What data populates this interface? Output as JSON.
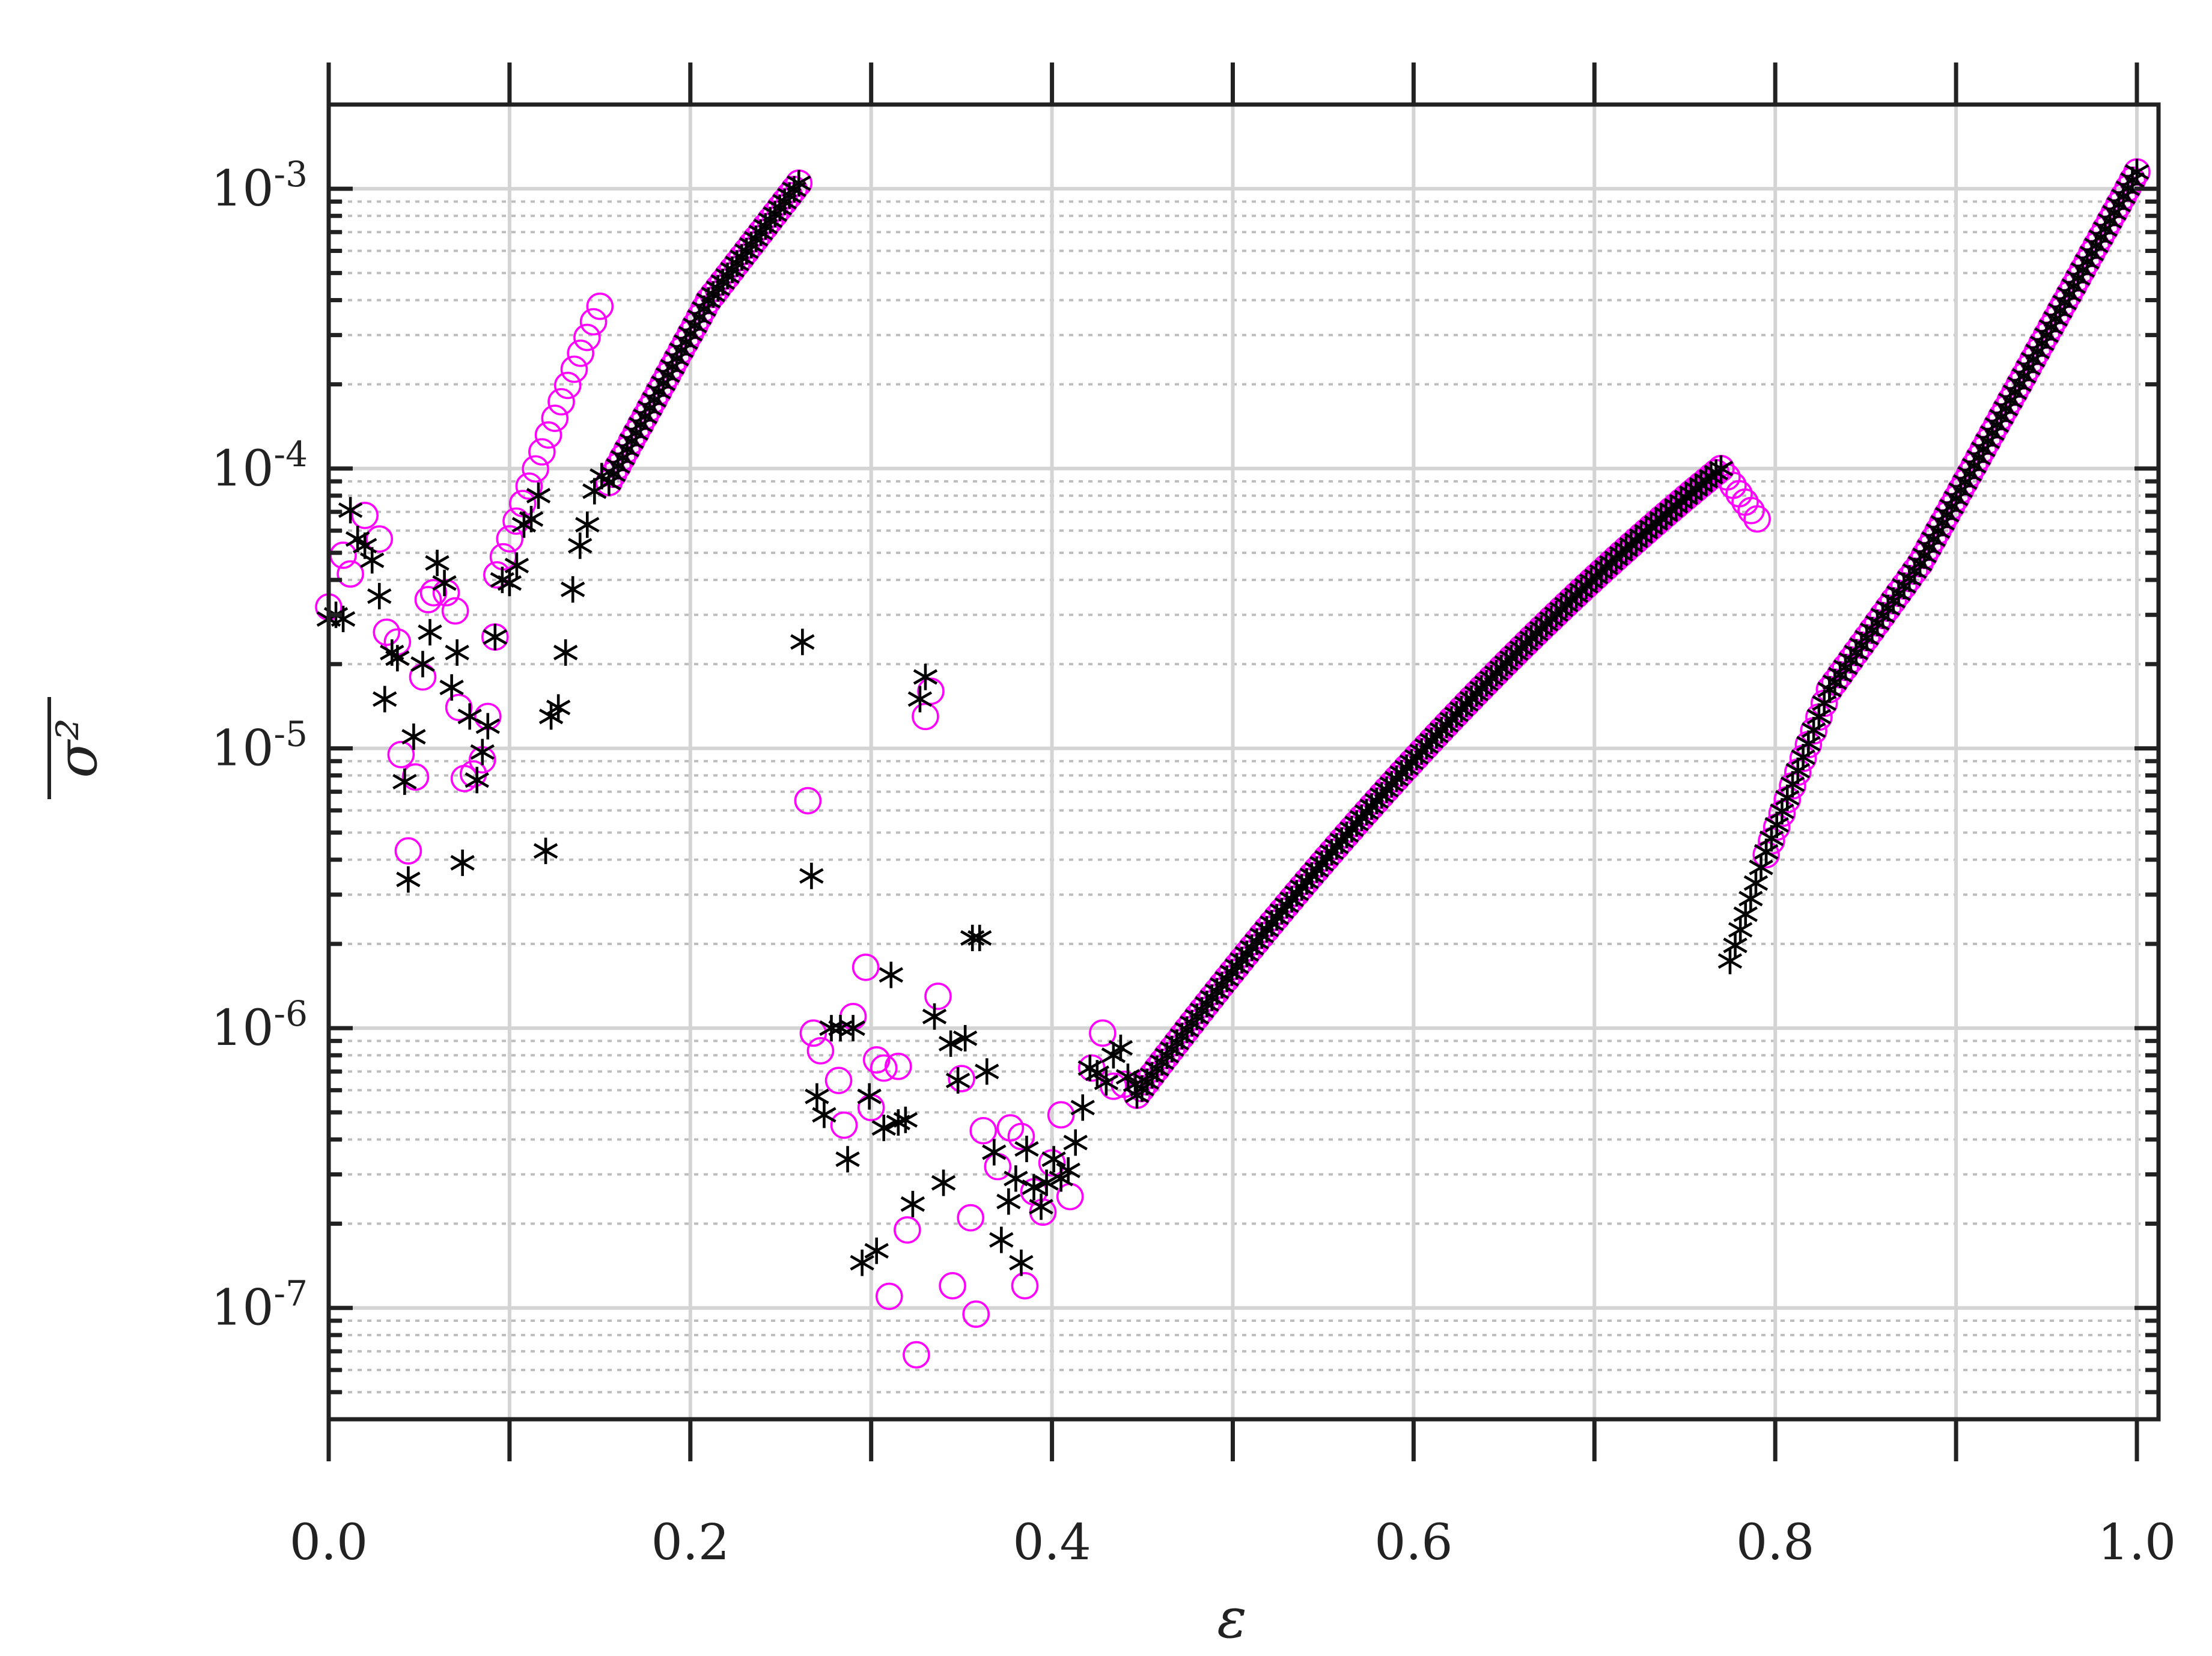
{
  "chart_data": {
    "type": "scatter",
    "title": "",
    "xlabel": "ε",
    "ylabel": "σ²",
    "xlim": [
      0,
      1
    ],
    "ylim": [
      4e-08,
      0.002
    ],
    "yscale": "log",
    "grid": true,
    "legend": "none",
    "x_ticks": [
      "0.0",
      "0.2",
      "0.4",
      "0.6",
      "0.8",
      "1.0"
    ],
    "y_ticks": [
      {
        "base": "10",
        "exp": "-7"
      },
      {
        "base": "10",
        "exp": "-6"
      },
      {
        "base": "10",
        "exp": "-5"
      },
      {
        "base": "10",
        "exp": "-4"
      },
      {
        "base": "10",
        "exp": "-3"
      }
    ],
    "series": [
      {
        "marker": "circle",
        "color": "#ff00ff",
        "segments": [
          {
            "x": [
              0.21,
              0.26
            ],
            "log10y": [
              -3.4,
              -2.98
            ],
            "n": 20
          },
          {
            "x": [
              0.093,
              0.15
            ],
            "log10y": [
              -4.38,
              -3.42
            ],
            "n": 17,
            "convex": 0.08
          },
          {
            "x": [
              0.155,
              0.21
            ],
            "log10y": [
              -4.05,
              -3.4
            ],
            "n": 23
          },
          {
            "x": [
              0.447,
              0.77
            ],
            "log10y": [
              -6.24,
              -4.0
            ],
            "n": 118,
            "convex": 0.55
          },
          {
            "x": [
              0.77,
              0.79
            ],
            "log10y": [
              -4.0,
              -4.18
            ],
            "n": 7
          },
          {
            "x": [
              0.795,
              0.83
            ],
            "log10y": [
              -5.38,
              -4.79
            ],
            "n": 13
          },
          {
            "x": [
              0.83,
              0.88
            ],
            "log10y": [
              -4.79,
              -4.34
            ],
            "n": 18
          },
          {
            "x": [
              0.88,
              1.0
            ],
            "log10y": [
              -4.34,
              -2.94
            ],
            "n": 49
          }
        ],
        "points": [
          [
            0.0,
            3.2e-05
          ],
          [
            0.008,
            4.9e-05
          ],
          [
            0.012,
            4.2e-05
          ],
          [
            0.02,
            6.8e-05
          ],
          [
            0.028,
            5.6e-05
          ],
          [
            0.032,
            2.6e-05
          ],
          [
            0.038,
            2.4e-05
          ],
          [
            0.04,
            9.5e-06
          ],
          [
            0.044,
            4.3e-06
          ],
          [
            0.048,
            7.9e-06
          ],
          [
            0.052,
            1.8e-05
          ],
          [
            0.055,
            3.4e-05
          ],
          [
            0.058,
            3.6e-05
          ],
          [
            0.065,
            3.6e-05
          ],
          [
            0.07,
            3.1e-05
          ],
          [
            0.072,
            1.4e-05
          ],
          [
            0.075,
            7.8e-06
          ],
          [
            0.08,
            8.1e-06
          ],
          [
            0.085,
            9.1e-06
          ],
          [
            0.088,
            1.3e-05
          ],
          [
            0.092,
            2.5e-05
          ],
          [
            0.265,
            6.5e-06
          ],
          [
            0.268,
            9.6e-07
          ],
          [
            0.272,
            8.3e-07
          ],
          [
            0.282,
            6.5e-07
          ],
          [
            0.285,
            4.5e-07
          ],
          [
            0.29,
            1.1e-06
          ],
          [
            0.297,
            1.65e-06
          ],
          [
            0.3,
            5.2e-07
          ],
          [
            0.303,
            7.7e-07
          ],
          [
            0.307,
            7.2e-07
          ],
          [
            0.31,
            1.1e-07
          ],
          [
            0.315,
            7.3e-07
          ],
          [
            0.32,
            1.9e-07
          ],
          [
            0.325,
            6.8e-08
          ],
          [
            0.33,
            1.3e-05
          ],
          [
            0.333,
            1.6e-05
          ],
          [
            0.337,
            1.3e-06
          ],
          [
            0.345,
            1.2e-07
          ],
          [
            0.35,
            6.6e-07
          ],
          [
            0.355,
            2.1e-07
          ],
          [
            0.358,
            9.5e-08
          ],
          [
            0.362,
            4.3e-07
          ],
          [
            0.37,
            3.2e-07
          ],
          [
            0.377,
            4.4e-07
          ],
          [
            0.383,
            4.1e-07
          ],
          [
            0.385,
            1.2e-07
          ],
          [
            0.39,
            2.6e-07
          ],
          [
            0.395,
            2.2e-07
          ],
          [
            0.4,
            3.3e-07
          ],
          [
            0.405,
            4.9e-07
          ],
          [
            0.41,
            2.5e-07
          ],
          [
            0.422,
            7.2e-07
          ],
          [
            0.428,
            9.6e-07
          ],
          [
            0.434,
            6.2e-07
          ],
          [
            0.44,
            6.3e-07
          ]
        ]
      },
      {
        "marker": "star",
        "color": "#000000",
        "segments": [
          {
            "x": [
              0.21,
              0.26
            ],
            "log10y": [
              -3.4,
              -2.98
            ],
            "n": 20
          },
          {
            "x": [
              0.155,
              0.21
            ],
            "log10y": [
              -4.05,
              -3.4
            ],
            "n": 23
          },
          {
            "x": [
              0.447,
              0.77
            ],
            "log10y": [
              -6.24,
              -4.0
            ],
            "n": 118,
            "convex": 0.55
          },
          {
            "x": [
              0.775,
              0.795
            ],
            "log10y": [
              -5.76,
              -5.37
            ],
            "n": 8
          },
          {
            "x": [
              0.795,
              0.83
            ],
            "log10y": [
              -5.37,
              -4.79
            ],
            "n": 13
          },
          {
            "x": [
              0.83,
              0.88
            ],
            "log10y": [
              -4.79,
              -4.34
            ],
            "n": 18
          },
          {
            "x": [
              0.88,
              1.0
            ],
            "log10y": [
              -4.34,
              -2.94
            ],
            "n": 49
          }
        ],
        "points": [
          [
            0.0,
            2.9e-05
          ],
          [
            0.004,
            3e-05
          ],
          [
            0.008,
            2.9e-05
          ],
          [
            0.012,
            7.1e-05
          ],
          [
            0.016,
            5.6e-05
          ],
          [
            0.02,
            5.3e-05
          ],
          [
            0.024,
            4.7e-05
          ],
          [
            0.028,
            3.5e-05
          ],
          [
            0.031,
            1.5e-05
          ],
          [
            0.035,
            2.2e-05
          ],
          [
            0.038,
            2.1e-05
          ],
          [
            0.042,
            7.6e-06
          ],
          [
            0.044,
            3.4e-06
          ],
          [
            0.047,
            1.1e-05
          ],
          [
            0.052,
            2e-05
          ],
          [
            0.056,
            2.6e-05
          ],
          [
            0.06,
            4.6e-05
          ],
          [
            0.064,
            3.9e-05
          ],
          [
            0.068,
            1.65e-05
          ],
          [
            0.071,
            2.2e-05
          ],
          [
            0.074,
            3.9e-06
          ],
          [
            0.078,
            1.3e-05
          ],
          [
            0.082,
            7.7e-06
          ],
          [
            0.085,
            9.7e-06
          ],
          [
            0.088,
            1.2e-05
          ],
          [
            0.092,
            2.5e-05
          ],
          [
            0.096,
            4e-05
          ],
          [
            0.1,
            3.9e-05
          ],
          [
            0.104,
            4.5e-05
          ],
          [
            0.108,
            6.3e-05
          ],
          [
            0.112,
            6.6e-05
          ],
          [
            0.116,
            8e-05
          ],
          [
            0.12,
            4.3e-06
          ],
          [
            0.123,
            1.3e-05
          ],
          [
            0.127,
            1.4e-05
          ],
          [
            0.131,
            2.2e-05
          ],
          [
            0.135,
            3.7e-05
          ],
          [
            0.139,
            5.3e-05
          ],
          [
            0.143,
            6.3e-05
          ],
          [
            0.147,
            8.3e-05
          ],
          [
            0.151,
            9.4e-05
          ],
          [
            0.262,
            2.4e-05
          ],
          [
            0.267,
            3.5e-06
          ],
          [
            0.27,
            5.7e-07
          ],
          [
            0.274,
            4.9e-07
          ],
          [
            0.278,
            1e-06
          ],
          [
            0.283,
            1e-06
          ],
          [
            0.287,
            3.4e-07
          ],
          [
            0.29,
            1e-06
          ],
          [
            0.295,
            1.45e-07
          ],
          [
            0.299,
            5.7e-07
          ],
          [
            0.303,
            1.6e-07
          ],
          [
            0.307,
            4.4e-07
          ],
          [
            0.311,
            1.55e-06
          ],
          [
            0.315,
            4.6e-07
          ],
          [
            0.319,
            4.7e-07
          ],
          [
            0.323,
            2.35e-07
          ],
          [
            0.327,
            1.5e-05
          ],
          [
            0.33,
            1.8e-05
          ],
          [
            0.335,
            1.1e-06
          ],
          [
            0.34,
            2.8e-07
          ],
          [
            0.344,
            8.8e-07
          ],
          [
            0.348,
            6.5e-07
          ],
          [
            0.352,
            9.2e-07
          ],
          [
            0.356,
            2.1e-06
          ],
          [
            0.36,
            2.1e-06
          ],
          [
            0.364,
            7e-07
          ],
          [
            0.368,
            3.6e-07
          ],
          [
            0.372,
            1.75e-07
          ],
          [
            0.376,
            2.4e-07
          ],
          [
            0.38,
            2.9e-07
          ],
          [
            0.383,
            1.45e-07
          ],
          [
            0.386,
            3.7e-07
          ],
          [
            0.39,
            2.7e-07
          ],
          [
            0.394,
            2.3e-07
          ],
          [
            0.397,
            2.8e-07
          ],
          [
            0.401,
            3.4e-07
          ],
          [
            0.405,
            2.9e-07
          ],
          [
            0.409,
            3.1e-07
          ],
          [
            0.413,
            3.9e-07
          ],
          [
            0.417,
            5.2e-07
          ],
          [
            0.421,
            7.2e-07
          ],
          [
            0.425,
            6.9e-07
          ],
          [
            0.43,
            6.4e-07
          ],
          [
            0.434,
            8e-07
          ],
          [
            0.438,
            8.5e-07
          ],
          [
            0.442,
            6.7e-07
          ],
          [
            0.446,
            6.3e-07
          ]
        ]
      }
    ]
  }
}
